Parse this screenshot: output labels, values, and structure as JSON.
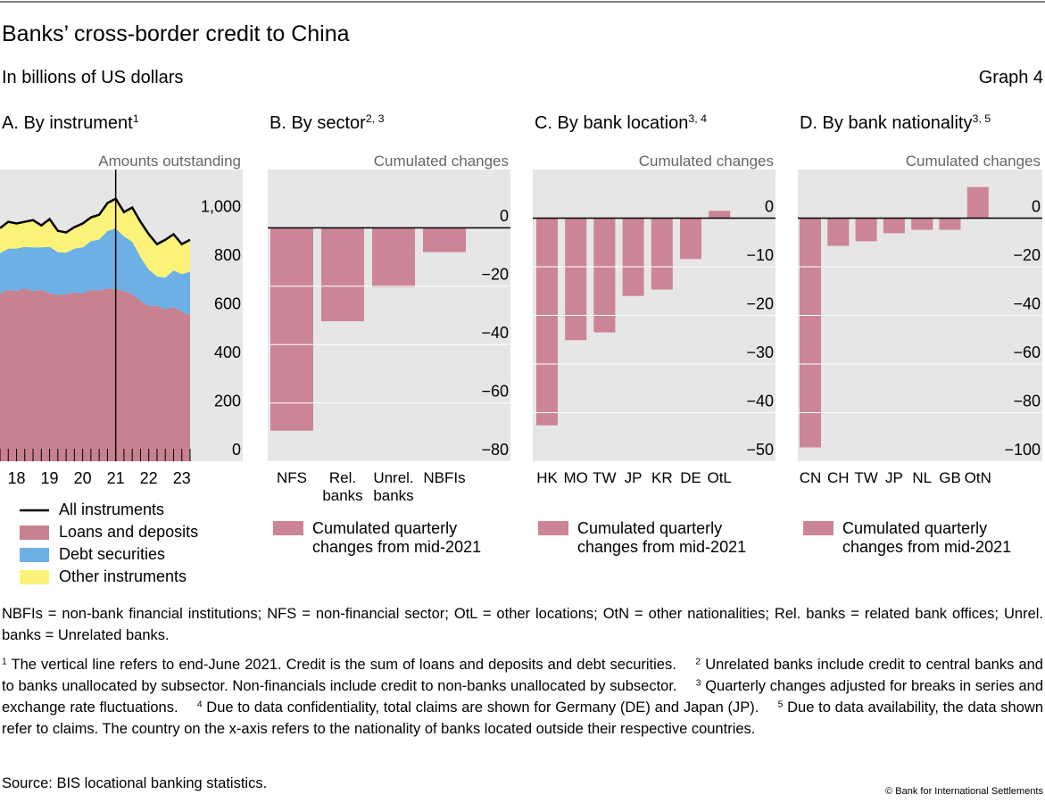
{
  "header": {
    "title": "Banks’ cross-border credit to China",
    "subtitle": "In billions of US dollars",
    "graph_label": "Graph 4"
  },
  "chart_data": [
    {
      "type": "area",
      "title": "A. By instrument",
      "title_note": "1",
      "annotation": "Amounts outstanding",
      "categories": [
        null,
        null,
        "18",
        null,
        null,
        null,
        "19",
        null,
        null,
        null,
        "20",
        null,
        null,
        null,
        "21",
        null,
        null,
        null,
        "22",
        null,
        null,
        null,
        "23",
        null
      ],
      "vline": 14,
      "ylim": [
        0,
        1200
      ],
      "yticks": [
        0,
        200,
        400,
        600,
        800,
        {
          "value": 1000,
          "label": "1,000"
        }
      ],
      "grid": false,
      "series": [
        {
          "name": "All instruments",
          "type": "line",
          "color": "#000000",
          "values": [
            959,
            985,
            978,
            985,
            992,
            970,
            996,
            948,
            941,
            963,
            978,
            1003,
            1014,
            1062,
            1080,
            1025,
            1044,
            985,
            934,
            893,
            911,
            934,
            893,
            911
          ]
        },
        {
          "name": "Loans and deposits",
          "color": "#c8818f",
          "values": [
            690,
            705,
            700,
            712,
            700,
            705,
            692,
            685,
            688,
            695,
            690,
            705,
            702,
            712,
            708,
            700,
            688,
            660,
            638,
            640,
            625,
            635,
            615,
            600
          ]
        },
        {
          "name": "Debt securities",
          "color": "#6cb0e6",
          "values": [
            165,
            170,
            175,
            170,
            180,
            175,
            190,
            175,
            170,
            180,
            190,
            200,
            210,
            235,
            250,
            225,
            215,
            180,
            150,
            120,
            130,
            150,
            155,
            180
          ]
        },
        {
          "name": "Other instruments",
          "color": "#fbf27a",
          "values": [
            104,
            110,
            103,
            103,
            112,
            90,
            114,
            88,
            83,
            88,
            98,
            98,
            102,
            115,
            122,
            100,
            141,
            145,
            146,
            133,
            156,
            149,
            123,
            131
          ]
        }
      ]
    },
    {
      "type": "bar",
      "title": "B. By sector",
      "title_note": "2, 3",
      "annotation": "Cumulated changes",
      "categories": [
        "NFS",
        "Rel. banks",
        "Unrel. banks",
        "NBFIs"
      ],
      "ylim": [
        -80,
        20
      ],
      "yticks": [
        {
          "value": -80,
          "label": "−80"
        },
        {
          "value": -60,
          "label": "−60"
        },
        {
          "value": -40,
          "label": "−40"
        },
        {
          "value": -20,
          "label": "−20"
        },
        0
      ],
      "grid": true,
      "series": [
        {
          "name": "Cumulated quarterly changes from mid-2021",
          "color": "#cc8596",
          "values": [
            -69.5,
            -32,
            -20.3,
            -8.3
          ]
        }
      ]
    },
    {
      "type": "bar",
      "title": "C. By bank location",
      "title_note": "3, 4",
      "annotation": "Cumulated changes",
      "categories": [
        "HK",
        "MO",
        "TW",
        "JP",
        "KR",
        "DE",
        "OtL"
      ],
      "ylim": [
        -50,
        10
      ],
      "yticks": [
        {
          "value": -50,
          "label": "−50"
        },
        {
          "value": -40,
          "label": "−40"
        },
        {
          "value": -30,
          "label": "−30"
        },
        {
          "value": -20,
          "label": "−20"
        },
        {
          "value": -10,
          "label": "−10"
        },
        0
      ],
      "grid": true,
      "series": [
        {
          "name": "Cumulated quarterly changes from mid-2021",
          "color": "#cc8596",
          "values": [
            -42.6,
            -25.1,
            -23.5,
            -16,
            -14.7,
            -8.4,
            1.5
          ]
        }
      ]
    },
    {
      "type": "bar",
      "title": "D. By bank nationality",
      "title_note": "3, 5",
      "annotation": "Cumulated changes",
      "categories": [
        "CN",
        "CH",
        "TW",
        "JP",
        "NL",
        "GB",
        "OtN"
      ],
      "ylim": [
        -100,
        20
      ],
      "yticks": [
        {
          "value": -100,
          "label": "−100"
        },
        {
          "value": -80,
          "label": "−80"
        },
        {
          "value": -60,
          "label": "−60"
        },
        {
          "value": -40,
          "label": "−40"
        },
        {
          "value": -20,
          "label": "−20"
        },
        0
      ],
      "grid": true,
      "series": [
        {
          "name": "Cumulated quarterly changes from mid-2021",
          "color": "#cc8596",
          "values": [
            -94.3,
            -11.4,
            -9.5,
            -6.2,
            -4.8,
            -4.8,
            12.8
          ]
        }
      ]
    }
  ],
  "notes": {
    "abbreviations": "NBFIs = non-bank financial institutions; NFS = non-financial sector; OtL = other locations; OtN = other nationalities; Rel. banks = related bank offices; Unrel. banks = Unrelated banks.",
    "footnotes": [
      {
        "marker": "1",
        "text": "The vertical line refers to end-June 2021. Credit is the sum of loans and deposits and debt securities."
      },
      {
        "marker": "2",
        "text": "Unrelated banks include credit to central banks and to banks unallocated by subsector. Non-financials include credit to non-banks unallocated by subsector."
      },
      {
        "marker": "3",
        "text": "Quarterly changes adjusted for breaks in series and exchange rate fluctuations."
      },
      {
        "marker": "4",
        "text": "Due to data confidentiality, total claims are shown for Germany (DE) and Japan (JP)."
      },
      {
        "marker": "5",
        "text": "Due to data availability, the data shown refer to claims. The country on the x-axis refers to the nationality of banks located outside their respective countries."
      }
    ],
    "source": "Source: BIS locational banking statistics.",
    "copyright": "© Bank for International Settlements"
  }
}
